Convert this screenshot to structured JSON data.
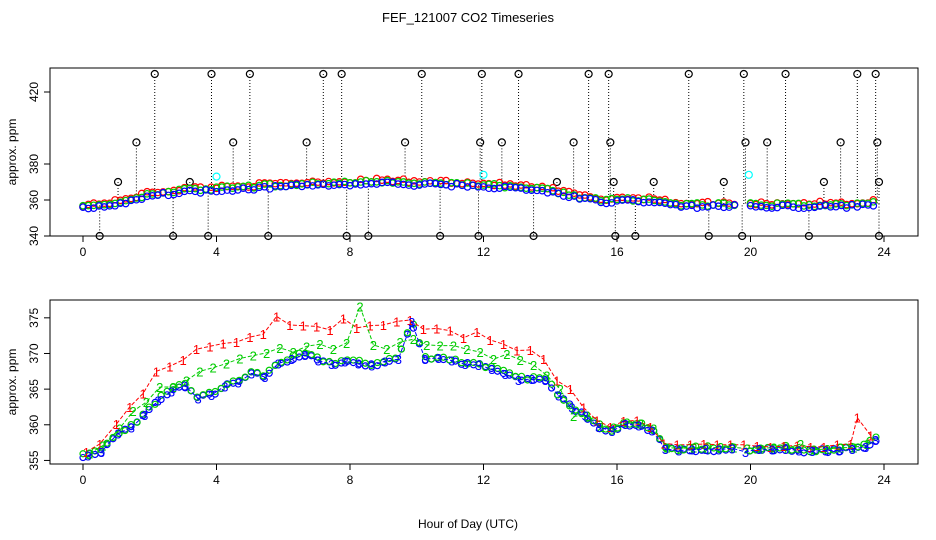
{
  "title": "FEF_121007  CO2 Timeseries",
  "xlabel": "Hour of Day (UTC)",
  "colors": {
    "red": "#ff0000",
    "green": "#00cc00",
    "blue": "#0000ff",
    "cyan": "#00ffff",
    "black": "#000000"
  },
  "chart_data": [
    {
      "type": "scatter",
      "name": "top-panel",
      "ylabel": "approx. ppm",
      "xlim": [
        0,
        24
      ],
      "ylim": [
        340,
        430
      ],
      "xticks": [
        "0",
        "4",
        "8",
        "12",
        "16",
        "20",
        "24"
      ],
      "yticks": [
        "340",
        "360",
        "380",
        "420"
      ],
      "base_profile": {
        "x": [
          0,
          1,
          2,
          3,
          4,
          5,
          6,
          7,
          8,
          9,
          10,
          11,
          12,
          13,
          14,
          15,
          15.7,
          16,
          17,
          17.5,
          18,
          19,
          20,
          21,
          22,
          23,
          23.7
        ],
        "y": [
          356,
          358,
          363,
          365,
          366,
          367,
          368,
          369,
          369,
          370,
          369,
          369,
          368,
          367,
          365,
          361,
          359,
          360,
          360,
          358,
          357,
          357,
          357,
          357,
          357,
          357,
          358
        ]
      },
      "spikes_high": [
        2.15,
        3.85,
        5.0,
        7.2,
        7.75,
        10.15,
        11.95,
        13.05,
        15.15,
        15.75,
        18.15,
        19.8,
        21.05,
        23.2,
        23.75
      ],
      "spikes_low": [
        0.5,
        2.7,
        3.75,
        5.55,
        7.9,
        8.55,
        10.7,
        11.85,
        13.5,
        15.95,
        16.55,
        18.75,
        19.75,
        21.75,
        23.85
      ],
      "mid_outliers": {
        "x": [
          1.6,
          4.5,
          6.7,
          9.65,
          11.9,
          12.55,
          14.7,
          15.8,
          19.85,
          20.5,
          22.7,
          23.8,
          1.05,
          3.2,
          14.2,
          15.9,
          17.1,
          19.2,
          22.2,
          23.85
        ],
        "y": [
          392,
          392,
          392,
          392,
          392,
          392,
          392,
          392,
          392,
          392,
          392,
          392,
          370,
          370,
          370,
          370,
          370,
          370,
          370,
          370
        ]
      },
      "cyan_points": {
        "x": [
          4.0,
          12.0,
          19.95
        ],
        "y": [
          373,
          374,
          374
        ]
      }
    },
    {
      "type": "scatter",
      "name": "bottom-panel",
      "ylabel": "approx. ppm",
      "xlim": [
        0,
        24
      ],
      "ylim": [
        355,
        377
      ],
      "xticks": [
        "0",
        "4",
        "8",
        "12",
        "16",
        "20",
        "24"
      ],
      "yticks": [
        "355",
        "360",
        "365",
        "370",
        "375"
      ],
      "series": [
        {
          "marker": "1",
          "color": "red",
          "x": [
            0.1,
            0.5,
            1.0,
            1.4,
            1.8,
            2.2,
            2.6,
            3.0,
            3.4,
            3.8,
            4.2,
            4.6,
            5.0,
            5.4,
            5.8,
            6.2,
            6.6,
            7.0,
            7.4,
            7.8,
            8.2,
            8.6,
            9.0,
            9.4,
            9.8,
            10.2,
            10.6,
            11.0,
            11.4,
            11.8,
            12.2,
            12.6,
            13.0,
            13.4,
            13.8,
            14.2,
            14.6,
            15.0,
            15.4,
            15.8,
            16.2,
            16.6,
            17.0,
            17.4,
            17.8,
            18.2,
            18.6,
            19.0,
            19.4,
            19.8,
            20.2,
            20.6,
            21.0,
            21.4,
            21.8,
            22.2,
            22.6,
            23.0,
            23.2,
            23.6
          ],
          "y": [
            356.2,
            357.3,
            360.1,
            362.5,
            364.4,
            367.5,
            368.2,
            369.1,
            370.6,
            371.0,
            371.4,
            371.6,
            372.3,
            372.7,
            375.2,
            374.0,
            373.9,
            373.8,
            373.3,
            374.9,
            373.6,
            373.9,
            374.0,
            374.5,
            374.7,
            373.4,
            373.5,
            373.2,
            372.2,
            373.0,
            371.9,
            371.3,
            370.4,
            370.5,
            369.2,
            366.2,
            365.0,
            362.4,
            360.6,
            359.7,
            360.5,
            360.6,
            359.7,
            357.4,
            357.2,
            357.2,
            357.3,
            357.2,
            357.2,
            357.2,
            357.0,
            356.9,
            357.0,
            357.1,
            356.9,
            356.9,
            357.2,
            357.3,
            361.0,
            358.5
          ]
        },
        {
          "marker": "2",
          "color": "green",
          "x": [
            0.2,
            0.6,
            1.1,
            1.5,
            1.9,
            2.3,
            2.7,
            3.1,
            3.5,
            3.9,
            4.3,
            4.7,
            5.1,
            5.5,
            5.9,
            6.3,
            6.7,
            7.1,
            7.5,
            7.9,
            8.3,
            8.7,
            9.1,
            9.5,
            9.9,
            10.3,
            10.7,
            11.1,
            11.5,
            11.9,
            12.3,
            12.7,
            13.1,
            13.5,
            13.9,
            14.3,
            14.7,
            15.1,
            15.5,
            15.9,
            16.3,
            16.7,
            17.1,
            17.5,
            17.9,
            18.3,
            18.7,
            19.1,
            19.5,
            19.9,
            20.3,
            20.7,
            21.1,
            21.5,
            21.9,
            22.3,
            22.7,
            23.1,
            23.5
          ],
          "y": [
            356.0,
            357.1,
            359.5,
            361.9,
            363.2,
            365.3,
            365.3,
            366.2,
            367.5,
            368.0,
            368.6,
            369.3,
            369.7,
            370.1,
            370.8,
            370.2,
            371.0,
            371.3,
            370.6,
            371.5,
            376.6,
            371.2,
            370.6,
            371.6,
            372.0,
            371.2,
            371.1,
            371.1,
            370.6,
            370.2,
            369.2,
            369.9,
            369.1,
            368.4,
            366.9,
            365.0,
            361.2,
            361.3,
            359.7,
            359.6,
            360.3,
            360.2,
            359.5,
            356.8,
            356.7,
            356.8,
            356.7,
            356.9,
            356.8,
            356.7,
            356.7,
            356.8,
            356.7,
            357.3,
            356.5,
            356.6,
            356.8,
            356.8,
            357.3
          ]
        },
        {
          "marker": "3",
          "color": "blue",
          "x": [
            0.15,
            0.55,
            1.05,
            1.45,
            1.85,
            2.25,
            2.65,
            3.05,
            3.45,
            3.85,
            4.25,
            4.65,
            5.05,
            5.45,
            5.85,
            6.25,
            6.65,
            7.05,
            7.45,
            7.85,
            8.25,
            8.65,
            9.05,
            9.45,
            9.85,
            10.25,
            10.65,
            11.05,
            11.45,
            11.85,
            12.25,
            12.65,
            13.05,
            13.45,
            13.85,
            14.25,
            14.65,
            15.05,
            15.45,
            15.85,
            16.25,
            16.65,
            17.05,
            17.45,
            17.85,
            18.25,
            18.65,
            19.05,
            19.45,
            19.85,
            20.25,
            20.65,
            21.05,
            21.45,
            21.85,
            22.25,
            22.65,
            23.05,
            23.45,
            23.75
          ],
          "y": [
            355.7,
            356.2,
            358.8,
            359.6,
            361.4,
            363.4,
            364.7,
            365.5,
            363.7,
            364.2,
            365.4,
            365.9,
            367.2,
            366.7,
            368.6,
            369.2,
            369.8,
            369.0,
            368.5,
            368.9,
            368.6,
            368.3,
            368.9,
            369.2,
            374.4,
            369.2,
            369.4,
            369.0,
            368.5,
            368.4,
            367.8,
            367.1,
            366.3,
            366.4,
            366.3,
            364.1,
            362.4,
            361.3,
            359.7,
            359.1,
            360.1,
            359.9,
            359.2,
            356.6,
            356.4,
            356.5,
            356.6,
            356.5,
            356.7,
            356.2,
            356.6,
            356.5,
            356.6,
            356.4,
            356.3,
            356.4,
            356.4,
            356.6,
            356.9,
            357.9
          ]
        }
      ]
    }
  ]
}
